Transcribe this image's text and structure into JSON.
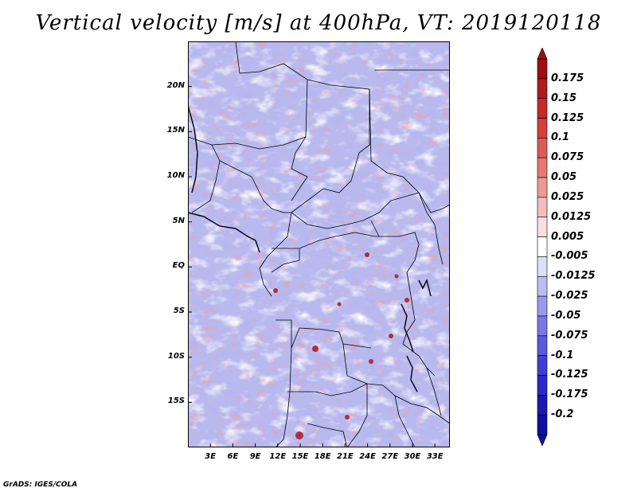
{
  "title": "Vertical velocity [m/s] at 400hPa, VT: 2019120118",
  "credit": "GrADS: IGES/COLA",
  "map": {
    "region": "Central Africa",
    "lon_range": [
      0,
      35
    ],
    "lat_range": [
      -20,
      25
    ],
    "lat_ticks": [
      {
        "value": 20,
        "label": "20N"
      },
      {
        "value": 15,
        "label": "15N"
      },
      {
        "value": 10,
        "label": "10N"
      },
      {
        "value": 5,
        "label": "5N"
      },
      {
        "value": 0,
        "label": "EQ"
      },
      {
        "value": -5,
        "label": "5S"
      },
      {
        "value": -10,
        "label": "10S"
      },
      {
        "value": -15,
        "label": "15S"
      }
    ],
    "lon_ticks": [
      {
        "value": 3,
        "label": "3E"
      },
      {
        "value": 6,
        "label": "6E"
      },
      {
        "value": 9,
        "label": "9E"
      },
      {
        "value": 12,
        "label": "12E"
      },
      {
        "value": 15,
        "label": "15E"
      },
      {
        "value": 18,
        "label": "18E"
      },
      {
        "value": 21,
        "label": "21E"
      },
      {
        "value": 24,
        "label": "24E"
      },
      {
        "value": 27,
        "label": "27E"
      },
      {
        "value": 30,
        "label": "30E"
      },
      {
        "value": 33,
        "label": "33E"
      }
    ]
  },
  "colorbar": {
    "labels": [
      "0.175",
      "0.15",
      "0.125",
      "0.1",
      "0.075",
      "0.05",
      "0.025",
      "0.0125",
      "0.005",
      "-0.005",
      "-0.0125",
      "-0.025",
      "-0.05",
      "-0.075",
      "-0.1",
      "-0.125",
      "-0.175",
      "-0.2"
    ],
    "colors": [
      "#9e0e14",
      "#b01a1f",
      "#c52a2c",
      "#d43f3c",
      "#dd5a56",
      "#e47874",
      "#ec9a96",
      "#f3bdba",
      "#f9dedd",
      "#ffffff",
      "#dedef9",
      "#bcbcf3",
      "#9a9aec",
      "#7878e4",
      "#5a5add",
      "#3f3fd4",
      "#2a2ac5",
      "#1a1ab0",
      "#10109e"
    ],
    "arrow_top_color": "#9e0e14",
    "arrow_bottom_color": "#10109e"
  }
}
